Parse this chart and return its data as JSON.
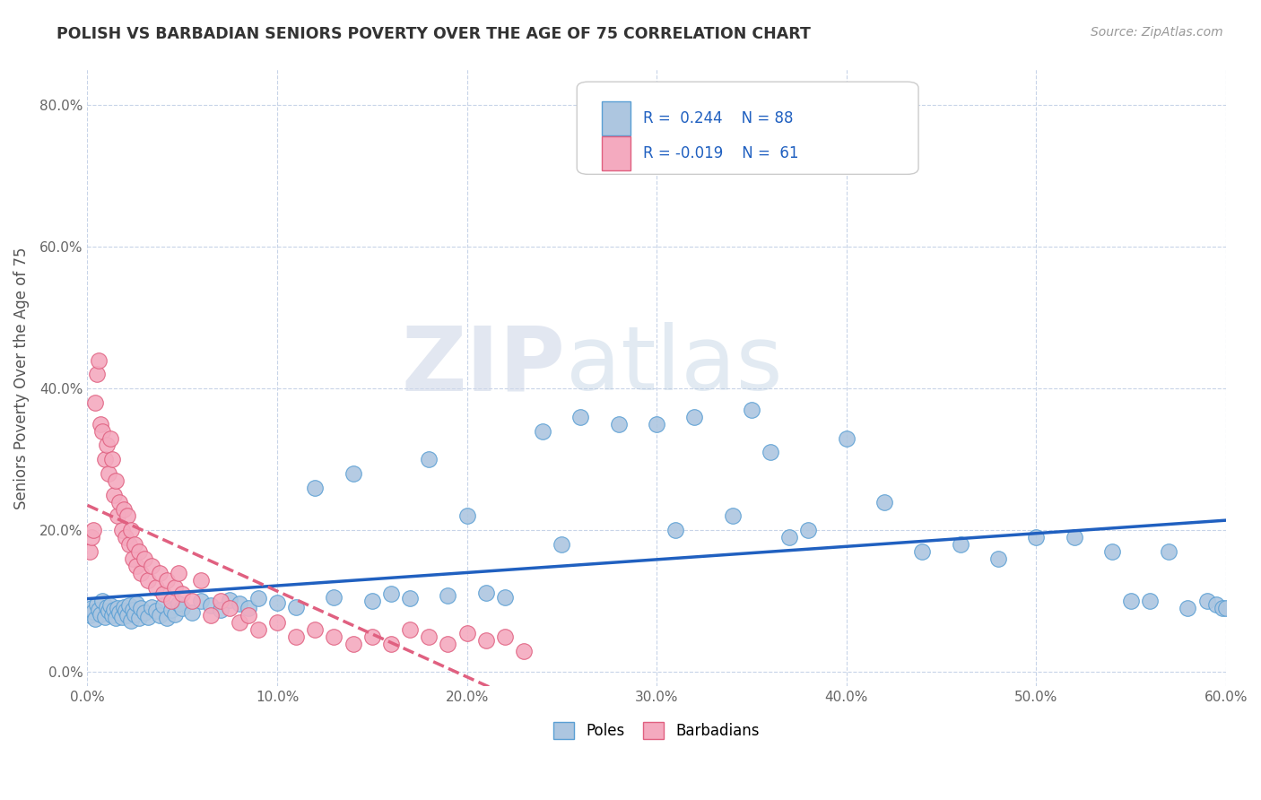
{
  "title": "POLISH VS BARBADIAN SENIORS POVERTY OVER THE AGE OF 75 CORRELATION CHART",
  "source": "Source: ZipAtlas.com",
  "ylabel": "Seniors Poverty Over the Age of 75",
  "xlim": [
    0.0,
    0.6
  ],
  "ylim": [
    -0.02,
    0.85
  ],
  "xticks": [
    0.0,
    0.1,
    0.2,
    0.3,
    0.4,
    0.5,
    0.6
  ],
  "xticklabels": [
    "0.0%",
    "10.0%",
    "20.0%",
    "30.0%",
    "40.0%",
    "50.0%",
    "60.0%"
  ],
  "yticks": [
    0.0,
    0.2,
    0.4,
    0.6,
    0.8
  ],
  "yticklabels": [
    "0.0%",
    "20.0%",
    "40.0%",
    "60.0%",
    "80.0%"
  ],
  "poles_color": "#adc6e0",
  "barbadians_color": "#f4aabf",
  "poles_edge_color": "#5a9fd4",
  "barbadians_edge_color": "#e06080",
  "poles_line_color": "#2060c0",
  "barbadians_line_color": "#e06080",
  "r_poles": "0.244",
  "n_poles": "88",
  "r_barbadians": "-0.019",
  "n_barbadians": "61",
  "watermark_zip": "ZIP",
  "watermark_atlas": "atlas",
  "background_color": "#ffffff",
  "grid_color": "#c8d4e8",
  "poles_x": [
    0.001,
    0.002,
    0.003,
    0.004,
    0.005,
    0.006,
    0.007,
    0.008,
    0.009,
    0.01,
    0.011,
    0.012,
    0.013,
    0.014,
    0.015,
    0.016,
    0.017,
    0.018,
    0.019,
    0.02,
    0.021,
    0.022,
    0.023,
    0.024,
    0.025,
    0.026,
    0.027,
    0.028,
    0.03,
    0.032,
    0.034,
    0.036,
    0.038,
    0.04,
    0.042,
    0.044,
    0.046,
    0.048,
    0.05,
    0.055,
    0.06,
    0.065,
    0.07,
    0.075,
    0.08,
    0.085,
    0.09,
    0.1,
    0.11,
    0.12,
    0.13,
    0.14,
    0.15,
    0.16,
    0.17,
    0.18,
    0.19,
    0.2,
    0.21,
    0.22,
    0.24,
    0.25,
    0.26,
    0.28,
    0.3,
    0.31,
    0.32,
    0.34,
    0.35,
    0.36,
    0.37,
    0.38,
    0.4,
    0.42,
    0.44,
    0.46,
    0.48,
    0.5,
    0.52,
    0.54,
    0.55,
    0.56,
    0.57,
    0.58,
    0.59,
    0.595,
    0.598,
    0.6
  ],
  "poles_y": [
    0.08,
    0.09,
    0.085,
    0.075,
    0.095,
    0.088,
    0.082,
    0.1,
    0.078,
    0.092,
    0.086,
    0.094,
    0.08,
    0.088,
    0.076,
    0.09,
    0.084,
    0.078,
    0.092,
    0.086,
    0.08,
    0.094,
    0.072,
    0.088,
    0.082,
    0.096,
    0.076,
    0.09,
    0.084,
    0.078,
    0.092,
    0.086,
    0.08,
    0.094,
    0.076,
    0.088,
    0.082,
    0.096,
    0.09,
    0.084,
    0.1,
    0.094,
    0.088,
    0.102,
    0.096,
    0.09,
    0.104,
    0.098,
    0.092,
    0.26,
    0.106,
    0.28,
    0.1,
    0.11,
    0.104,
    0.3,
    0.108,
    0.22,
    0.112,
    0.106,
    0.34,
    0.18,
    0.36,
    0.35,
    0.35,
    0.2,
    0.36,
    0.22,
    0.37,
    0.31,
    0.19,
    0.2,
    0.33,
    0.24,
    0.17,
    0.18,
    0.16,
    0.19,
    0.19,
    0.17,
    0.1,
    0.1,
    0.17,
    0.09,
    0.1,
    0.095,
    0.09,
    0.09
  ],
  "barbadians_x": [
    0.001,
    0.002,
    0.003,
    0.004,
    0.005,
    0.006,
    0.007,
    0.008,
    0.009,
    0.01,
    0.011,
    0.012,
    0.013,
    0.014,
    0.015,
    0.016,
    0.017,
    0.018,
    0.019,
    0.02,
    0.021,
    0.022,
    0.023,
    0.024,
    0.025,
    0.026,
    0.027,
    0.028,
    0.03,
    0.032,
    0.034,
    0.036,
    0.038,
    0.04,
    0.042,
    0.044,
    0.046,
    0.048,
    0.05,
    0.055,
    0.06,
    0.065,
    0.07,
    0.075,
    0.08,
    0.085,
    0.09,
    0.1,
    0.11,
    0.12,
    0.13,
    0.14,
    0.15,
    0.16,
    0.17,
    0.18,
    0.19,
    0.2,
    0.21,
    0.22,
    0.23
  ],
  "barbadians_y": [
    0.17,
    0.19,
    0.2,
    0.38,
    0.42,
    0.44,
    0.35,
    0.34,
    0.3,
    0.32,
    0.28,
    0.33,
    0.3,
    0.25,
    0.27,
    0.22,
    0.24,
    0.2,
    0.23,
    0.19,
    0.22,
    0.18,
    0.2,
    0.16,
    0.18,
    0.15,
    0.17,
    0.14,
    0.16,
    0.13,
    0.15,
    0.12,
    0.14,
    0.11,
    0.13,
    0.1,
    0.12,
    0.14,
    0.11,
    0.1,
    0.13,
    0.08,
    0.1,
    0.09,
    0.07,
    0.08,
    0.06,
    0.07,
    0.05,
    0.06,
    0.05,
    0.04,
    0.05,
    0.04,
    0.06,
    0.05,
    0.04,
    0.055,
    0.045,
    0.05,
    0.03
  ]
}
